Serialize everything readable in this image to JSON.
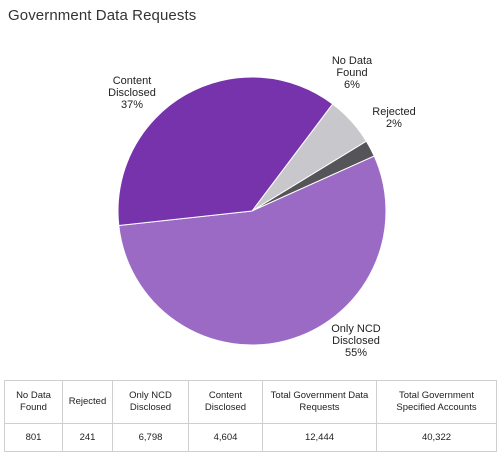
{
  "page": {
    "title": "Government Data Requests"
  },
  "chart_data": {
    "type": "pie",
    "slices": [
      {
        "label_lines": [
          "No Data",
          "Found"
        ],
        "percent_label": "6%",
        "value": 6,
        "color": "#c8c8cc"
      },
      {
        "label_lines": [
          "Rejected"
        ],
        "percent_label": "2%",
        "value": 2,
        "color": "#555559"
      },
      {
        "label_lines": [
          "Only NCD",
          "Disclosed"
        ],
        "percent_label": "55%",
        "value": 55,
        "color": "#9b6ac4"
      },
      {
        "label_lines": [
          "Content",
          "Disclosed"
        ],
        "percent_label": "37%",
        "value": 37,
        "color": "#7633ab"
      }
    ]
  },
  "table": {
    "headers": [
      "No Data Found",
      "Rejected",
      "Only NCD Disclosed",
      "Content Disclosed",
      "Total Government Data Requests",
      "Total Government Specified Accounts"
    ],
    "values": [
      "801",
      "241",
      "6,798",
      "4,604",
      "12,444",
      "40,322"
    ]
  }
}
